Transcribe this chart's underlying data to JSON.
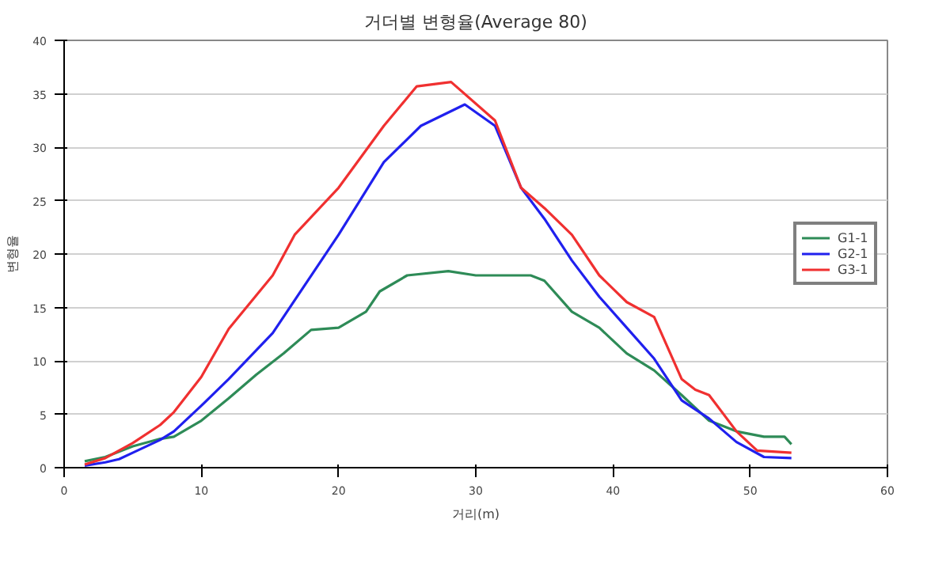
{
  "chart_data": {
    "type": "line",
    "title": "거더별 변형율(Average 80)",
    "xlabel": "거리(m)",
    "ylabel": "변형율",
    "xlim": [
      0,
      60
    ],
    "xticks": [
      0,
      10,
      20,
      30,
      40,
      50,
      60
    ],
    "ylim": [
      0,
      40
    ],
    "yticks": [
      0,
      5,
      10,
      15,
      20,
      25,
      30,
      35,
      40
    ],
    "grid": "y",
    "legend": "right",
    "marker": "none",
    "line_style": "solid",
    "series": [
      {
        "name": "G1-1",
        "color": "#2e8b57",
        "x": [
          1.5,
          3,
          5,
          7,
          8,
          10,
          12,
          14,
          16,
          18,
          20,
          22,
          23,
          25,
          28,
          30,
          31,
          34,
          35,
          37,
          39,
          41,
          43,
          45,
          47,
          49,
          51,
          52.5,
          53
        ],
        "values": [
          0.6,
          1,
          2,
          2.7,
          2.9,
          4.4,
          6.5,
          8.7,
          10.7,
          12.9,
          13.1,
          14.6,
          16.5,
          18,
          18.4,
          18,
          18,
          18,
          17.5,
          14.6,
          13.1,
          10.7,
          9.1,
          6.8,
          4.4,
          3.4,
          2.9,
          2.9,
          2.2
        ]
      },
      {
        "name": "G2-1",
        "color": "#2020ee",
        "x": [
          1.5,
          3,
          4,
          5,
          7,
          8,
          10,
          12,
          15.2,
          20,
          23.3,
          26,
          29.2,
          31.4,
          33.3,
          35,
          37,
          39,
          41,
          43,
          45,
          47,
          49,
          51,
          53
        ],
        "values": [
          0.2,
          0.5,
          0.8,
          1.4,
          2.6,
          3.4,
          5.8,
          8.3,
          12.6,
          21.8,
          28.6,
          32,
          34,
          32,
          26.2,
          23.3,
          19.4,
          16,
          13.1,
          10.2,
          6.3,
          4.6,
          2.4,
          1,
          0.9
        ]
      },
      {
        "name": "G3-1",
        "color": "#f03030",
        "x": [
          1.5,
          3,
          5,
          7,
          8,
          10,
          12,
          15.2,
          16.8,
          20,
          23.3,
          25.7,
          28.2,
          31.4,
          33.3,
          35,
          37,
          39,
          41,
          43,
          45,
          46,
          47,
          49,
          50.5,
          53
        ],
        "values": [
          0.3,
          0.9,
          2.3,
          4,
          5.2,
          8.5,
          13,
          18,
          21.8,
          26.2,
          32,
          35.7,
          36.1,
          32.5,
          26.2,
          24.3,
          21.8,
          18,
          15.5,
          14.1,
          8.3,
          7.3,
          6.8,
          3.4,
          1.6,
          1.4
        ]
      }
    ]
  }
}
